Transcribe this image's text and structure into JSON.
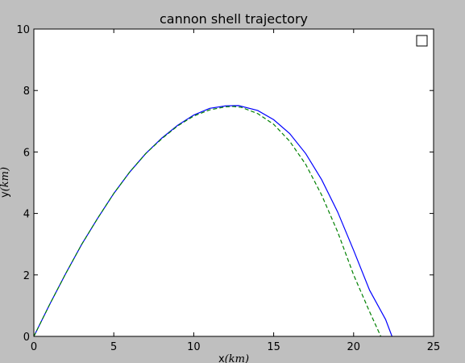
{
  "chart_data": {
    "type": "line",
    "title": "cannon shell trajectory",
    "xlabel": {
      "text": "x",
      "unit": "(km)"
    },
    "ylabel": {
      "text": "y",
      "unit": "(km)"
    },
    "xlim": [
      0,
      25
    ],
    "ylim": [
      0,
      10
    ],
    "xticks": [
      0,
      5,
      10,
      15,
      20,
      25
    ],
    "yticks": [
      0,
      2,
      4,
      6,
      8,
      10
    ],
    "grid": false,
    "legend": {
      "location": "top-right",
      "entries": []
    },
    "series": [
      {
        "style": "solid",
        "color": "#0000ff",
        "x": [
          0,
          1,
          2,
          3,
          4,
          5,
          6,
          7,
          8,
          9,
          10,
          11,
          12,
          12.8,
          14,
          15,
          16,
          17,
          18,
          19,
          20,
          21,
          22,
          22.4
        ],
        "y": [
          0,
          1.05,
          2.05,
          3.0,
          3.85,
          4.65,
          5.35,
          5.95,
          6.45,
          6.87,
          7.2,
          7.42,
          7.5,
          7.51,
          7.35,
          7.05,
          6.6,
          5.95,
          5.1,
          4.05,
          2.8,
          1.5,
          0.55,
          0
        ]
      },
      {
        "style": "dashed",
        "color": "#008000",
        "x": [
          0,
          1,
          2,
          3,
          4,
          5,
          6,
          7,
          8,
          9,
          10,
          11,
          12,
          12.5,
          13,
          14,
          15,
          16,
          17,
          18,
          19,
          20,
          21,
          21.7
        ],
        "y": [
          0,
          1.05,
          2.05,
          3.0,
          3.85,
          4.65,
          5.35,
          5.95,
          6.43,
          6.85,
          7.17,
          7.37,
          7.47,
          7.48,
          7.45,
          7.25,
          6.9,
          6.35,
          5.6,
          4.6,
          3.4,
          2.0,
          0.8,
          0
        ]
      }
    ]
  }
}
